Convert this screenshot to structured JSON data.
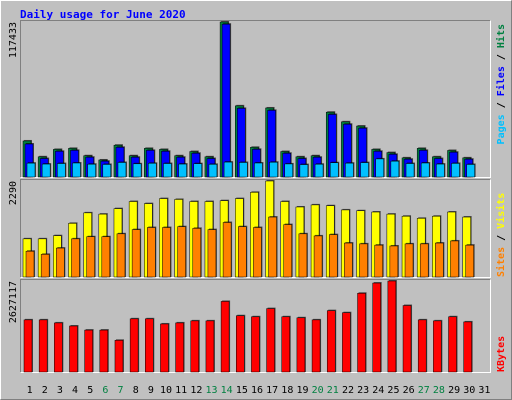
{
  "title": "Daily usage for June 2020",
  "legend_separator": " / ",
  "chart_data": [
    {
      "type": "bar",
      "legend_position": "top",
      "ylim": [
        0,
        117433
      ],
      "yticks": [
        117433
      ],
      "series": [
        {
          "name": "Pages",
          "color": "#00c0ff",
          "values": [
            10500,
            9800,
            10200,
            10600,
            9700,
            9500,
            11000,
            10000,
            10400,
            10200,
            9800,
            10100,
            9600,
            11300,
            11000,
            10600,
            11200,
            9900,
            9400,
            9700,
            10800,
            10500,
            10900,
            13700,
            12000,
            10200,
            10600,
            9800,
            10300,
            9500,
            null
          ]
        },
        {
          "name": "Files",
          "color": "#0000ff",
          "values": [
            25000,
            14000,
            19500,
            20200,
            15000,
            12000,
            22500,
            15000,
            20200,
            19500,
            15000,
            18000,
            14000,
            115800,
            52000,
            21000,
            50500,
            18000,
            14000,
            15000,
            47400,
            40000,
            37000,
            19500,
            17200,
            13500,
            20200,
            14000,
            18800,
            13500,
            null
          ]
        },
        {
          "name": "Hits",
          "color": "#008040",
          "values": [
            27300,
            15300,
            20900,
            21700,
            16100,
            12900,
            24100,
            16100,
            21700,
            20900,
            16100,
            19300,
            15300,
            117433,
            53900,
            22500,
            52300,
            19300,
            15300,
            16100,
            49100,
            41800,
            38600,
            20900,
            18500,
            14500,
            21700,
            15300,
            20100,
            14500,
            null
          ]
        }
      ]
    },
    {
      "type": "bar",
      "legend_position": "bottom",
      "ylim": [
        0,
        2290
      ],
      "yticks": [
        2290
      ],
      "series": [
        {
          "name": "Sites",
          "color": "#ff8000",
          "values": [
            615,
            540,
            690,
            910,
            960,
            960,
            1030,
            1130,
            1180,
            1180,
            1200,
            1160,
            1130,
            1300,
            1200,
            1180,
            1430,
            1250,
            1030,
            980,
            1010,
            810,
            790,
            760,
            740,
            790,
            790,
            810,
            860,
            760,
            null
          ]
        },
        {
          "name": "Visits",
          "color": "#ffff00",
          "values": [
            910,
            910,
            985,
            1280,
            1530,
            1500,
            1630,
            1800,
            1750,
            1870,
            1850,
            1800,
            1800,
            1820,
            1870,
            2020,
            2290,
            1800,
            1670,
            1720,
            1700,
            1600,
            1580,
            1550,
            1500,
            1450,
            1400,
            1450,
            1550,
            1430,
            null
          ]
        }
      ]
    },
    {
      "type": "bar",
      "legend_position": "bottom",
      "ylim": [
        0,
        2627117
      ],
      "yticks": [
        2627117
      ],
      "categories": [
        "1",
        "2",
        "3",
        "4",
        "5",
        "6",
        "7",
        "8",
        "9",
        "10",
        "11",
        "12",
        "13",
        "14",
        "15",
        "16",
        "17",
        "18",
        "19",
        "20",
        "21",
        "22",
        "23",
        "24",
        "25",
        "26",
        "27",
        "28",
        "29",
        "30",
        "31"
      ],
      "category_colors": [
        "#000000",
        "#000000",
        "#000000",
        "#000000",
        "#000000",
        "#008040",
        "#008040",
        "#000000",
        "#000000",
        "#000000",
        "#000000",
        "#000000",
        "#008040",
        "#008040",
        "#000000",
        "#000000",
        "#000000",
        "#000000",
        "#000000",
        "#008040",
        "#008040",
        "#000000",
        "#000000",
        "#000000",
        "#000000",
        "#000000",
        "#008040",
        "#008040",
        "#000000",
        "#000000",
        "#000000"
      ],
      "series": [
        {
          "name": "KBytes",
          "color": "#ff0000",
          "values": [
            1505000,
            1505000,
            1417000,
            1328000,
            1210000,
            1210000,
            915000,
            1535000,
            1535000,
            1387000,
            1417000,
            1476000,
            1476000,
            2037000,
            1624000,
            1594000,
            1830000,
            1594000,
            1565000,
            1505000,
            1771000,
            1712000,
            2273000,
            2568000,
            2627117,
            1919000,
            1505000,
            1476000,
            1594000,
            1446000,
            null
          ]
        }
      ]
    }
  ]
}
